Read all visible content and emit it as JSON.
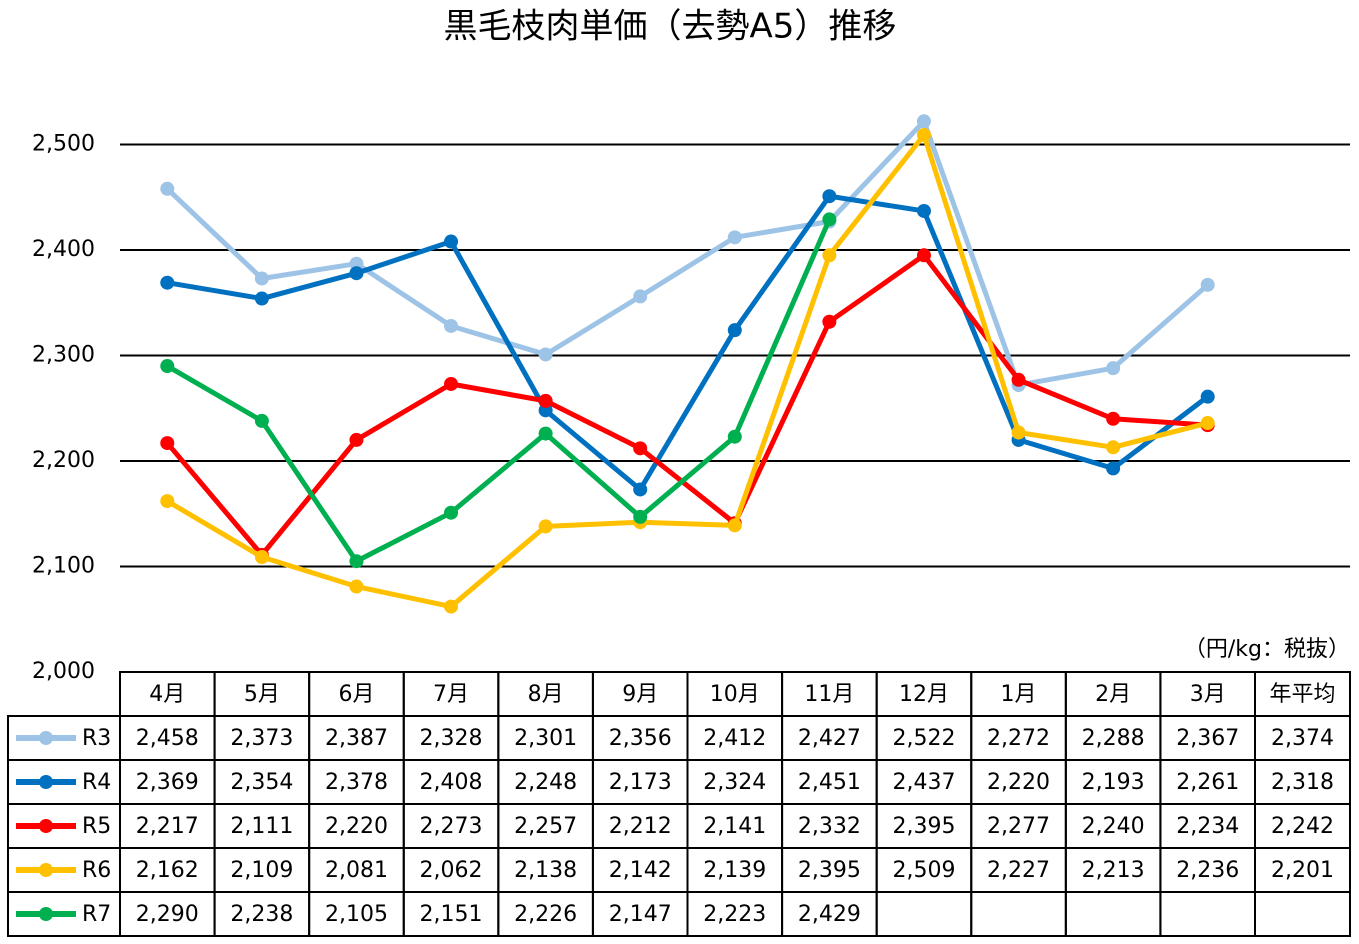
{
  "chart_data": {
    "type": "line",
    "title": "黒毛枝肉単価（去勢A5）推移",
    "unit_note": "（円/kg：税抜）",
    "categories": [
      "4月",
      "5月",
      "6月",
      "7月",
      "8月",
      "9月",
      "10月",
      "11月",
      "12月",
      "1月",
      "2月",
      "3月"
    ],
    "average_header": "年平均",
    "ylim": [
      2000,
      2550
    ],
    "yticks": [
      {
        "value": 2000,
        "label": "2,000"
      },
      {
        "value": 2100,
        "label": "2,100"
      },
      {
        "value": 2200,
        "label": "2,200"
      },
      {
        "value": 2300,
        "label": "2,300"
      },
      {
        "value": 2400,
        "label": "2,400"
      },
      {
        "value": 2500,
        "label": "2,500"
      }
    ],
    "grid": true,
    "series": [
      {
        "name": "R3",
        "color": "#9dc3e6",
        "values": [
          2458,
          2373,
          2387,
          2328,
          2301,
          2356,
          2412,
          2427,
          2522,
          2272,
          2288,
          2367
        ],
        "value_labels": [
          "2,458",
          "2,373",
          "2,387",
          "2,328",
          "2,301",
          "2,356",
          "2,412",
          "2,427",
          "2,522",
          "2,272",
          "2,288",
          "2,367"
        ],
        "average_value": 2374,
        "average_label": "2,374"
      },
      {
        "name": "R4",
        "color": "#0070c0",
        "values": [
          2369,
          2354,
          2378,
          2408,
          2248,
          2173,
          2324,
          2451,
          2437,
          2220,
          2193,
          2261
        ],
        "value_labels": [
          "2,369",
          "2,354",
          "2,378",
          "2,408",
          "2,248",
          "2,173",
          "2,324",
          "2,451",
          "2,437",
          "2,220",
          "2,193",
          "2,261"
        ],
        "average_value": 2318,
        "average_label": "2,318"
      },
      {
        "name": "R5",
        "color": "#ff0000",
        "values": [
          2217,
          2111,
          2220,
          2273,
          2257,
          2212,
          2141,
          2332,
          2395,
          2277,
          2240,
          2234
        ],
        "value_labels": [
          "2,217",
          "2,111",
          "2,220",
          "2,273",
          "2,257",
          "2,212",
          "2,141",
          "2,332",
          "2,395",
          "2,277",
          "2,240",
          "2,234"
        ],
        "average_value": 2242,
        "average_label": "2,242"
      },
      {
        "name": "R6",
        "color": "#ffc000",
        "values": [
          2162,
          2109,
          2081,
          2062,
          2138,
          2142,
          2139,
          2395,
          2509,
          2227,
          2213,
          2236
        ],
        "value_labels": [
          "2,162",
          "2,109",
          "2,081",
          "2,062",
          "2,138",
          "2,142",
          "2,139",
          "2,395",
          "2,509",
          "2,227",
          "2,213",
          "2,236"
        ],
        "average_value": 2201,
        "average_label": "2,201"
      },
      {
        "name": "R7",
        "color": "#00b050",
        "values": [
          2290,
          2238,
          2105,
          2151,
          2226,
          2147,
          2223,
          2429,
          null,
          null,
          null,
          null
        ],
        "value_labels": [
          "2,290",
          "2,238",
          "2,105",
          "2,151",
          "2,226",
          "2,147",
          "2,223",
          "2,429",
          null,
          null,
          null,
          null
        ]
      }
    ]
  }
}
